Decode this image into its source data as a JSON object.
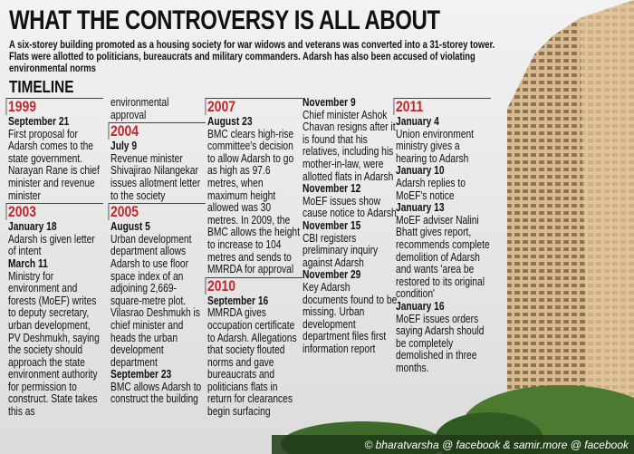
{
  "header": {
    "title": "WHAT THE CONTROVERSY IS ALL ABOUT",
    "subtitle": "A six-storey building promoted as a housing society for war widows and veterans was converted into a 31-storey tower. Flats were allotted to politicians, bureaucrats and military commanders. Adarsh has also been accused of violating environmental norms"
  },
  "timeline": {
    "label": "TIMELINE",
    "columns": [
      {
        "blocks": [
          {
            "year": "1999",
            "entries": [
              {
                "date": "September 21",
                "text": "First proposal for Adarsh comes to the state government. Narayan Rane is chief minister and revenue minister"
              }
            ]
          },
          {
            "year": "2003",
            "entries": [
              {
                "date": "January 18",
                "text": "Adarsh is given letter of intent"
              },
              {
                "date": "March 11",
                "text": "Ministry for environment and forests (MoEF) writes to deputy secretary, urban development, PV Deshmukh, saying the society should approach the state environment authority for permission to construct. State takes this as"
              }
            ]
          }
        ]
      },
      {
        "blocks": [
          {
            "entries": [
              {
                "text": "environmental approval"
              }
            ]
          },
          {
            "year": "2004",
            "entries": [
              {
                "date": "July 9",
                "text": "Revenue minister Shivajirao Nilangekar issues allotment letter to the society"
              }
            ]
          },
          {
            "year": "2005",
            "entries": [
              {
                "date": "August 5",
                "text": "Urban development department allows Adarsh to use floor space index of an adjoining 2,669-square-metre plot. Vilasrao Deshmukh is chief minister and heads the urban development department"
              },
              {
                "date": "September 23",
                "text": "BMC allows Adarsh to construct the building"
              }
            ]
          }
        ]
      },
      {
        "blocks": [
          {
            "year": "2007",
            "entries": [
              {
                "date": "August 23",
                "text": "BMC clears high-rise committee's decision to allow Adarsh to go as high as 97.6 metres, when maximum height allowed was 30 metres. In 2009, the BMC allows the height to increase to 104 metres and sends to MMRDA for approval"
              }
            ]
          },
          {
            "year": "2010",
            "entries": [
              {
                "date": "September 16",
                "text": "MMRDA gives occupation certificate to Adarsh. Allegations that society flouted norms and gave bureaucrats and politicians flats in return for clearances begin surfacing"
              }
            ]
          }
        ]
      },
      {
        "blocks": [
          {
            "entries": [
              {
                "date": "November 9",
                "text": "Chief minister Ashok Chavan resigns after it is found that his relatives, including his mother-in-law, were allotted flats in Adarsh"
              },
              {
                "date": "November 12",
                "text": "MoEF issues show cause notice to Adarsh"
              },
              {
                "date": "November 15",
                "text": "CBI registers preliminary inquiry against Adarsh"
              },
              {
                "date": "November 29",
                "text": "Key Adarsh documents found to be missing. Urban development department files first information report"
              }
            ]
          }
        ]
      },
      {
        "blocks": [
          {
            "year": "2011",
            "entries": [
              {
                "date": "January 4",
                "text": "Union environment ministry gives a hearing to Adarsh"
              },
              {
                "date": "January 10",
                "text": "Adarsh replies to MoEF's notice"
              },
              {
                "date": "January 13",
                "text": "MoEF adviser Nalini Bhatt gives report, recommends complete demolition of Adarsh and wants 'area be restored to its original condition'"
              },
              {
                "date": "January 16",
                "text": "MoEF issues orders saying Adarsh should be completely demolished in three months."
              }
            ]
          }
        ]
      }
    ]
  },
  "credit": "© bharatvarsha @ facebook & samir.more @ facebook"
}
